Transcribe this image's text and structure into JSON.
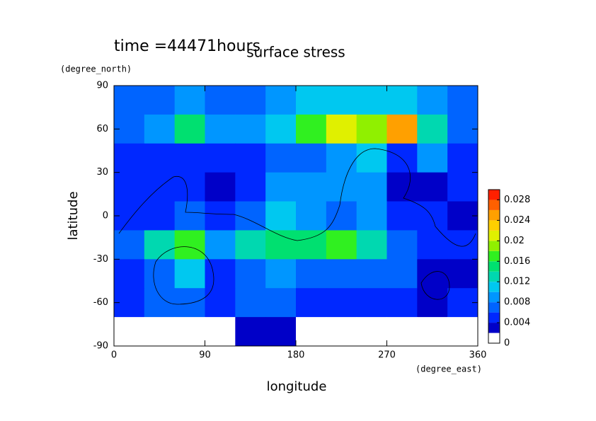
{
  "chart_data": {
    "type": "contour",
    "title": "surface stress",
    "subtitle": "time =44471hours",
    "xlabel": "longitude",
    "xunit": "(degree_east)",
    "ylabel": "latitude",
    "yunit": "(degree_north)",
    "xlim": [
      0,
      360
    ],
    "ylim": [
      -90,
      90
    ],
    "xticks": [
      0,
      90,
      180,
      270,
      360
    ],
    "yticks": [
      -90,
      -60,
      -30,
      0,
      30,
      60,
      90
    ],
    "lon": [
      15,
      45,
      75,
      105,
      135,
      165,
      195,
      225,
      255,
      285,
      315,
      345
    ],
    "lat": [
      80,
      60,
      40,
      20,
      0,
      -20,
      -40,
      -60,
      -80
    ],
    "values": [
      [
        0.006,
        0.006,
        0.008,
        0.006,
        0.006,
        0.008,
        0.01,
        0.01,
        0.01,
        0.01,
        0.008,
        0.006
      ],
      [
        0.006,
        0.008,
        0.014,
        0.008,
        0.008,
        0.01,
        0.016,
        0.02,
        0.018,
        0.024,
        0.012,
        0.006
      ],
      [
        0.004,
        0.004,
        0.004,
        0.004,
        0.004,
        0.006,
        0.006,
        0.008,
        0.01,
        0.004,
        0.008,
        0.004
      ],
      [
        0.004,
        0.004,
        0.004,
        0.002,
        0.004,
        0.008,
        0.008,
        0.008,
        0.008,
        0.002,
        0.002,
        0.004
      ],
      [
        0.004,
        0.004,
        0.006,
        0.004,
        0.006,
        0.01,
        0.008,
        0.006,
        0.008,
        0.004,
        0.004,
        0.002
      ],
      [
        0.006,
        0.012,
        0.016,
        0.008,
        0.012,
        0.014,
        0.014,
        0.016,
        0.012,
        0.006,
        0.004,
        0.004
      ],
      [
        0.004,
        0.006,
        0.01,
        0.004,
        0.006,
        0.008,
        0.006,
        0.006,
        0.006,
        0.006,
        0.002,
        0.002
      ],
      [
        0.004,
        0.006,
        0.006,
        0.004,
        0.006,
        0.006,
        0.004,
        0.004,
        0.004,
        0.004,
        0.002,
        0.004
      ],
      [
        0,
        0,
        0,
        0,
        0.002,
        0.002,
        0,
        0,
        0,
        0,
        0,
        0
      ]
    ],
    "levels": [
      0,
      0.002,
      0.004,
      0.006,
      0.008,
      0.01,
      0.012,
      0.014,
      0.016,
      0.018,
      0.02,
      0.022,
      0.024,
      0.026,
      0.028,
      0.03
    ],
    "colors": [
      "#ffffff",
      "#0000c8",
      "#0028ff",
      "#0064ff",
      "#0096ff",
      "#00c8f0",
      "#00d8b0",
      "#00e070",
      "#30f020",
      "#90f000",
      "#e0f000",
      "#ffd000",
      "#ffa000",
      "#ff6000",
      "#ff2000"
    ],
    "colorbar_lim": [
      0,
      0.03
    ],
    "colorbar_ticks": [
      0,
      0.004,
      0.008,
      0.012,
      0.016,
      0.02,
      0.024,
      0.028
    ]
  }
}
